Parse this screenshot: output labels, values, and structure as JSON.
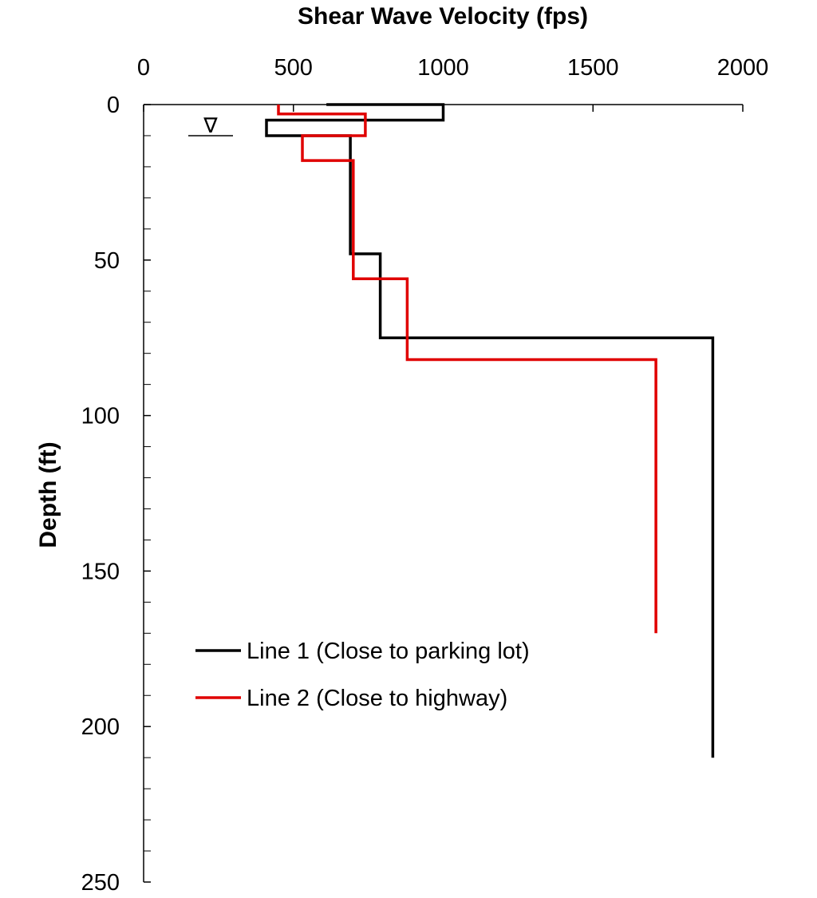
{
  "chart_data": {
    "type": "line",
    "title": "Shear Wave Velocity (fps)",
    "xlabel": "Shear Wave Velocity (fps)",
    "ylabel": "Depth (ft)",
    "xlim": [
      0,
      2000
    ],
    "ylim": [
      0,
      250
    ],
    "x_axis_position": "top",
    "y_axis_inverted": true,
    "x_ticks": [
      "0",
      "500",
      "1000",
      "1500",
      "2000"
    ],
    "y_ticks": [
      "0",
      "50",
      "100",
      "150",
      "200",
      "250"
    ],
    "grid": false,
    "legend_position": "lower-center",
    "water_table_symbol": "∇",
    "water_table_depth": 10,
    "series": [
      {
        "name": "Line 1 (Close to parking lot)",
        "color": "#000000",
        "points": [
          [
            610,
            0
          ],
          [
            1000,
            0
          ],
          [
            1000,
            5
          ],
          [
            410,
            5
          ],
          [
            410,
            10
          ],
          [
            690,
            10
          ],
          [
            690,
            48
          ],
          [
            790,
            48
          ],
          [
            790,
            75
          ],
          [
            1900,
            75
          ],
          [
            1900,
            210
          ]
        ]
      },
      {
        "name": "Line 2 (Close to highway)",
        "color": "#e00000",
        "points": [
          [
            450,
            0
          ],
          [
            450,
            3
          ],
          [
            740,
            3
          ],
          [
            740,
            10
          ],
          [
            530,
            10
          ],
          [
            530,
            18
          ],
          [
            700,
            18
          ],
          [
            700,
            56
          ],
          [
            880,
            56
          ],
          [
            880,
            82
          ],
          [
            1710,
            82
          ],
          [
            1710,
            170
          ]
        ]
      }
    ]
  }
}
